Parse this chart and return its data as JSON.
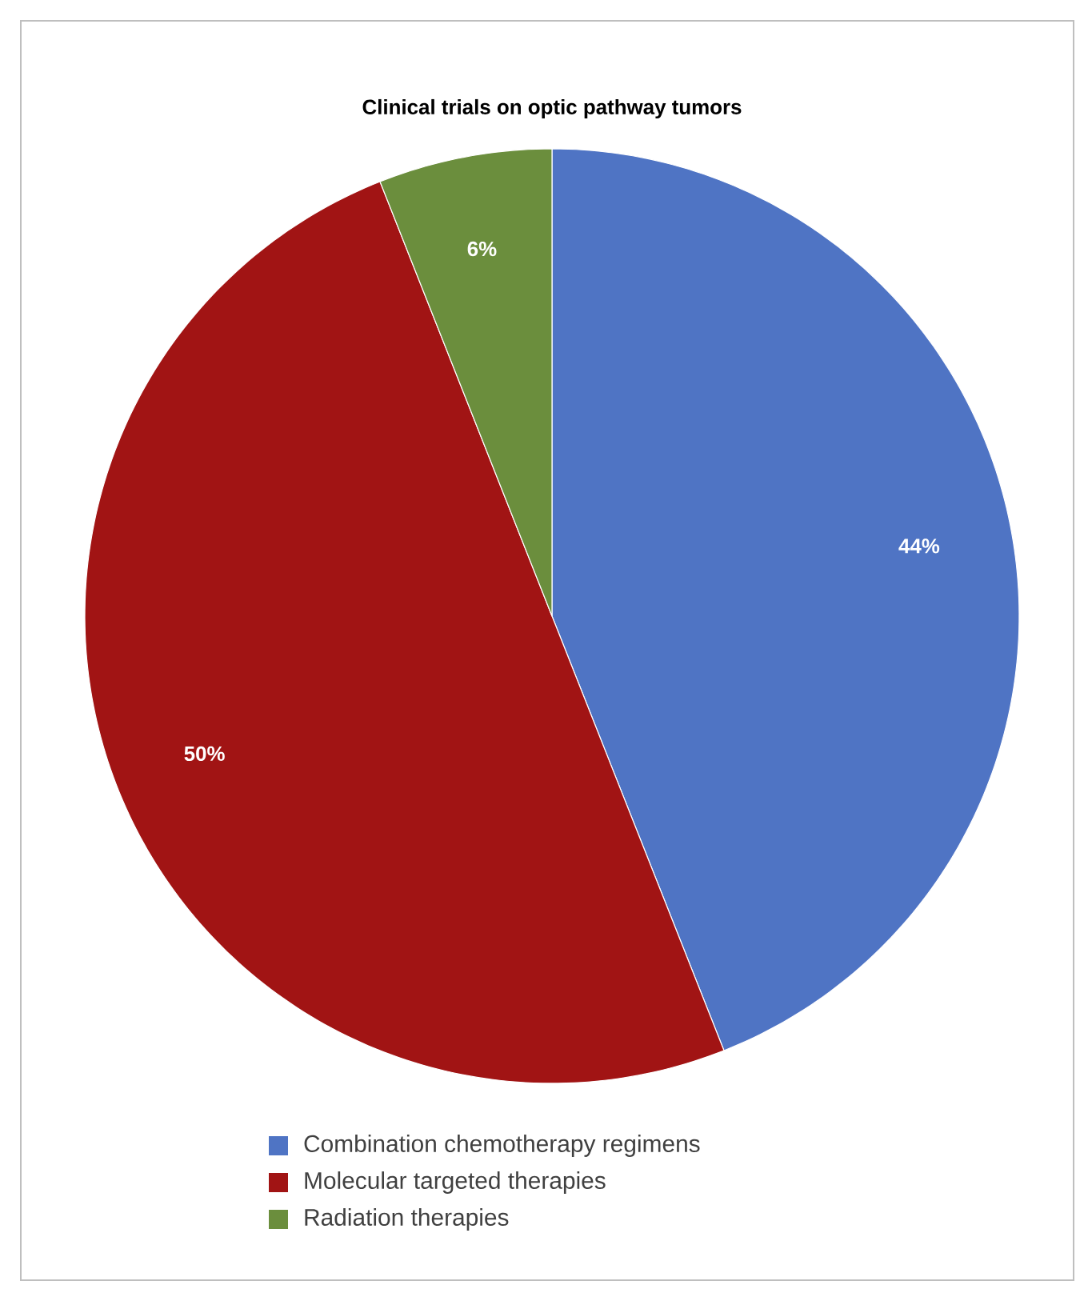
{
  "chart_data": {
    "type": "pie",
    "title": "Clinical trials on optic pathway tumors",
    "categories": [
      "Combination chemotherapy regimens",
      "Molecular targeted therapies",
      "Radiation therapies"
    ],
    "values": [
      44,
      50,
      6
    ],
    "value_labels": [
      "44%",
      "50%",
      "6%"
    ],
    "colors": [
      "#4f74c4",
      "#a11414",
      "#6b8e3d"
    ],
    "legend": "bottom"
  }
}
